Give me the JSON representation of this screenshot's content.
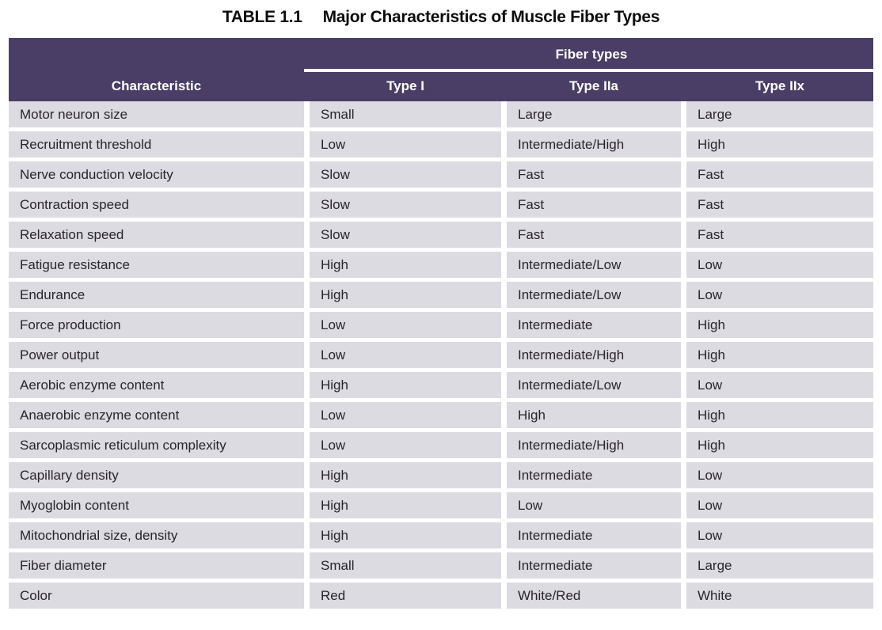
{
  "title": {
    "label": "TABLE 1.1",
    "text": "Major Characteristics of Muscle Fiber Types"
  },
  "table": {
    "group_header": "Fiber types",
    "columns": [
      "Characteristic",
      "Type I",
      "Type IIa",
      "Type IIx"
    ],
    "rows": [
      [
        "Motor neuron size",
        "Small",
        "Large",
        "Large"
      ],
      [
        "Recruitment threshold",
        "Low",
        "Intermediate/High",
        "High"
      ],
      [
        "Nerve conduction velocity",
        "Slow",
        "Fast",
        "Fast"
      ],
      [
        "Contraction speed",
        "Slow",
        "Fast",
        "Fast"
      ],
      [
        "Relaxation speed",
        "Slow",
        "Fast",
        "Fast"
      ],
      [
        "Fatigue resistance",
        "High",
        "Intermediate/Low",
        "Low"
      ],
      [
        "Endurance",
        "High",
        "Intermediate/Low",
        "Low"
      ],
      [
        "Force production",
        "Low",
        "Intermediate",
        "High"
      ],
      [
        "Power output",
        "Low",
        "Intermediate/High",
        "High"
      ],
      [
        "Aerobic enzyme content",
        "High",
        "Intermediate/Low",
        "Low"
      ],
      [
        "Anaerobic enzyme content",
        "Low",
        "High",
        "High"
      ],
      [
        "Sarcoplasmic reticulum complexity",
        "Low",
        "Intermediate/High",
        "High"
      ],
      [
        "Capillary density",
        "High",
        "Intermediate",
        "Low"
      ],
      [
        "Myoglobin content",
        "High",
        "Low",
        "Low"
      ],
      [
        "Mitochondrial size, density",
        "High",
        "Intermediate",
        "Low"
      ],
      [
        "Fiber diameter",
        "Small",
        "Intermediate",
        "Large"
      ],
      [
        "Color",
        "Red",
        "White/Red",
        "White"
      ]
    ],
    "colors": {
      "header_bg": "#4a3e66",
      "header_text": "#ffffff",
      "row_bg": "#dcdbe2",
      "body_text": "#29252b"
    }
  }
}
